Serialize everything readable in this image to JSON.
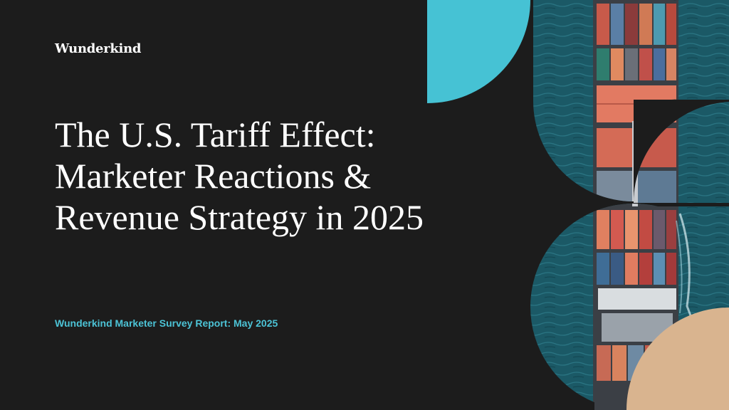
{
  "brand": {
    "logo": "Wunderkind"
  },
  "title": {
    "line1": "The U.S. Tariff Effect:",
    "line2": "Marketer Reactions &",
    "line3": "Revenue Strategy in 2025"
  },
  "subtitle": "Wunderkind Marketer Survey Report: May 2025",
  "colors": {
    "background": "#1c1c1c",
    "accent_teal": "#46c2d4",
    "accent_sand": "#d9b48f",
    "ocean": "#17525e"
  },
  "illustration": "aerial-container-ship"
}
